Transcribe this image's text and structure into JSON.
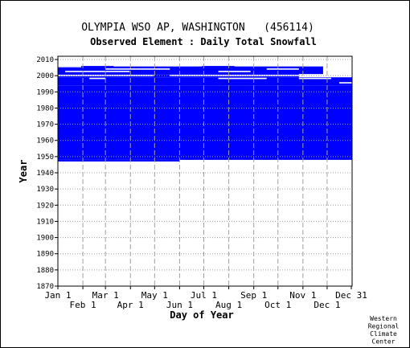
{
  "chart_data": {
    "type": "heatmap",
    "title": "OLYMPIA WSO AP, WASHINGTON   (456114)",
    "subtitle": "Observed Element : Daily Total Snowfall",
    "xlabel": "Day of Year",
    "ylabel": "Year",
    "ylim": [
      1870,
      2012
    ],
    "y_ticks": [
      1870,
      1880,
      1890,
      1900,
      1910,
      1920,
      1930,
      1940,
      1950,
      1960,
      1970,
      1980,
      1990,
      2000,
      2010
    ],
    "x_ticks_upper": [
      {
        "day": 1,
        "label": "Jan 1"
      },
      {
        "day": 60,
        "label": "Mar 1"
      },
      {
        "day": 121,
        "label": "May 1"
      },
      {
        "day": 182,
        "label": "Jul 1"
      },
      {
        "day": 244,
        "label": "Sep 1"
      },
      {
        "day": 305,
        "label": "Nov 1"
      },
      {
        "day": 365,
        "label": "Dec 31"
      }
    ],
    "x_ticks_lower": [
      {
        "day": 32,
        "label": "Feb 1"
      },
      {
        "day": 91,
        "label": "Apr 1"
      },
      {
        "day": 152,
        "label": "Jun 1"
      },
      {
        "day": 213,
        "label": "Aug 1"
      },
      {
        "day": 274,
        "label": "Oct 1"
      },
      {
        "day": 335,
        "label": "Dec 1"
      }
    ],
    "data_color": "#0000ff",
    "coverage_blocks": [
      {
        "year_start": 1948,
        "year_end": 1994,
        "day_start": 1,
        "day_end": 366
      },
      {
        "year_start": 1947,
        "year_end": 1948,
        "day_start": 1,
        "day_end": 152
      },
      {
        "year_start": 1994,
        "year_end": 1999,
        "day_start": 1,
        "day_end": 366
      },
      {
        "year_start": 1999,
        "year_end": 2001,
        "day_start": 1,
        "day_end": 300
      },
      {
        "year_start": 2001,
        "year_end": 2006,
        "day_start": 1,
        "day_end": 330
      }
    ],
    "grid": true,
    "credit": [
      "Western",
      "Regional",
      "Climate",
      "Center"
    ]
  }
}
